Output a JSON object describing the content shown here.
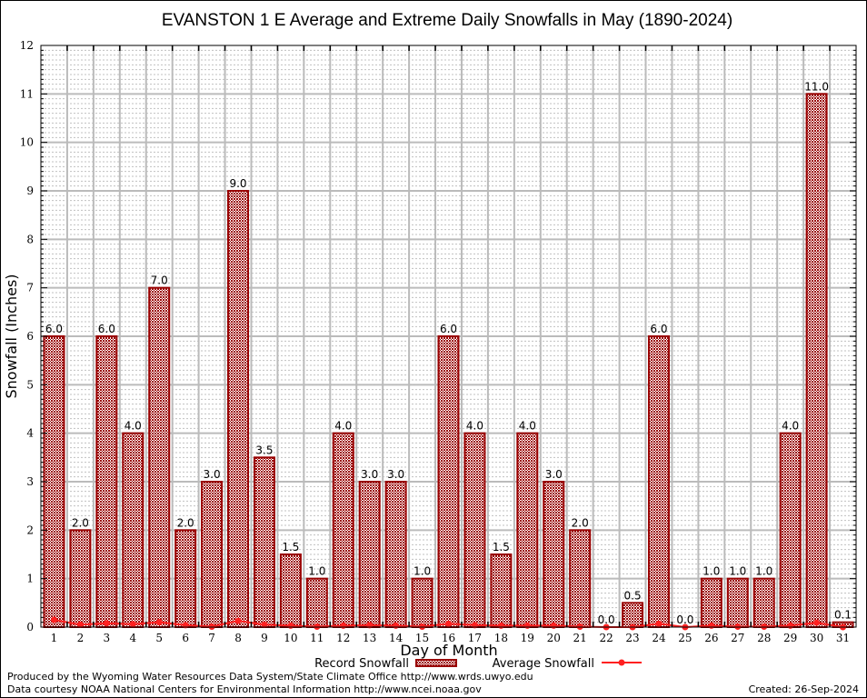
{
  "chart_data": {
    "type": "bar",
    "title": "EVANSTON 1 E Average and Extreme Daily Snowfalls in May (1890-2024)",
    "xlabel": "Day of Month",
    "ylabel": "Snowfall (Inches)",
    "ylim": [
      0,
      12
    ],
    "yticks": [
      "0",
      "1",
      "2",
      "3",
      "4",
      "5",
      "6",
      "7",
      "8",
      "9",
      "10",
      "11",
      "12"
    ],
    "grid": true,
    "categories": [
      "1",
      "2",
      "3",
      "4",
      "5",
      "6",
      "7",
      "8",
      "9",
      "10",
      "11",
      "12",
      "13",
      "14",
      "15",
      "16",
      "17",
      "18",
      "19",
      "20",
      "21",
      "22",
      "23",
      "24",
      "25",
      "26",
      "27",
      "28",
      "29",
      "30",
      "31"
    ],
    "series": [
      {
        "name": "Record Snowfall",
        "type": "bar",
        "color": "#990000",
        "values": [
          6.0,
          2.0,
          6.0,
          4.0,
          7.0,
          2.0,
          3.0,
          9.0,
          3.5,
          1.5,
          1.0,
          4.0,
          3.0,
          3.0,
          1.0,
          6.0,
          4.0,
          1.5,
          4.0,
          3.0,
          2.0,
          0.0,
          0.5,
          6.0,
          0.0,
          1.0,
          1.0,
          1.0,
          4.0,
          11.0,
          0.1
        ],
        "labels": [
          "6.0",
          "2.0",
          "6.0",
          "4.0",
          "7.0",
          "2.0",
          "3.0",
          "9.0",
          "3.5",
          "1.5",
          "1.0",
          "4.0",
          "3.0",
          "3.0",
          "1.0",
          "6.0",
          "4.0",
          "1.5",
          "4.0",
          "3.0",
          "2.0",
          "0.0",
          "0.5",
          "6.0",
          "0.0",
          "1.0",
          "1.0",
          "1.0",
          "4.0",
          "11.0",
          "0.1"
        ]
      },
      {
        "name": "Average Snowfall",
        "type": "line",
        "color": "#ff2020",
        "values": [
          0.15,
          0.05,
          0.08,
          0.06,
          0.1,
          0.04,
          0.01,
          0.13,
          0.05,
          0.03,
          0.01,
          0.03,
          0.04,
          0.03,
          0.01,
          0.07,
          0.04,
          0.03,
          0.03,
          0.03,
          0.01,
          0.0,
          0.0,
          0.07,
          0.0,
          0.03,
          0.01,
          0.01,
          0.03,
          0.09,
          0.0
        ]
      }
    ],
    "legend": {
      "placement": "bottom",
      "items": [
        "Record Snowfall",
        "Average Snowfall"
      ]
    }
  },
  "footer": {
    "line1": "Produced by the Wyoming Water Resources Data System/State Climate Office http://www.wrds.uwyo.edu",
    "line2": "Data courtesy NOAA National Centers for Environmental Information http://www.ncei.noaa.gov",
    "created": "Created: 26-Sep-2024"
  }
}
